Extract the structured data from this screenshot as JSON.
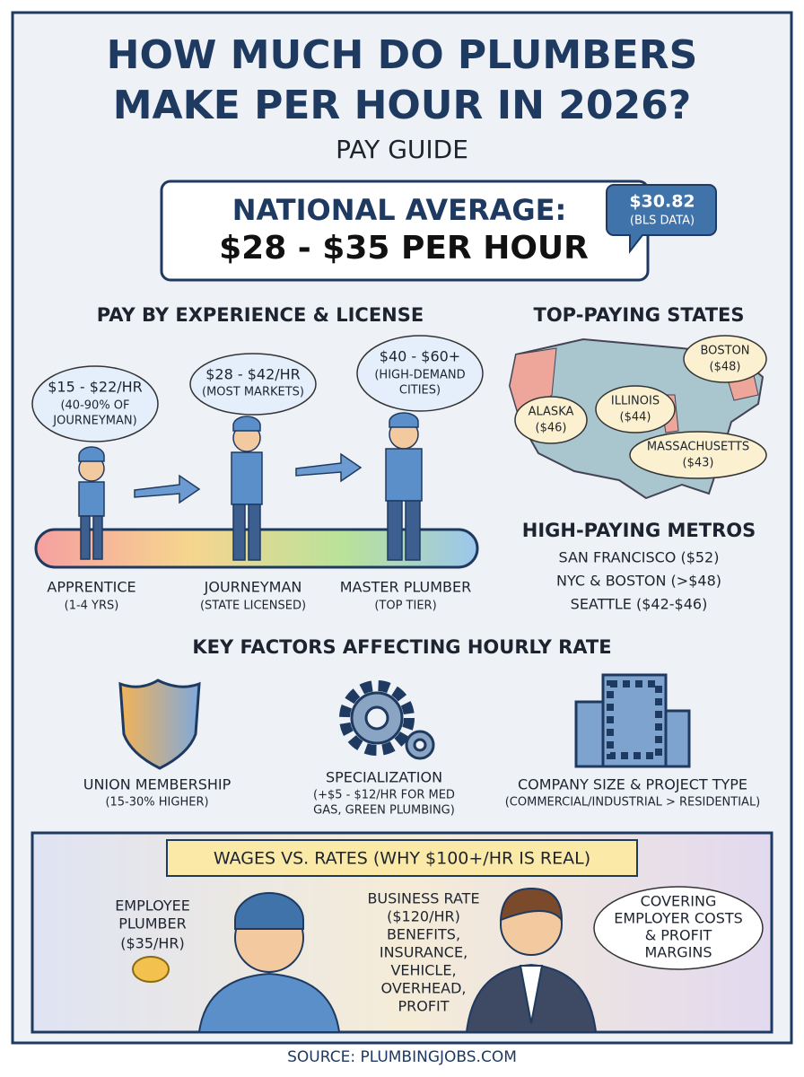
{
  "header": {
    "title_lines": [
      "HOW MUCH DO PLUMBERS",
      "MAKE PER HOUR IN 2026?"
    ],
    "subtitle": "PAY GUIDE"
  },
  "national": {
    "label": "NATIONAL AVERAGE:",
    "range": "$28 - $35 PER HOUR",
    "badge_lines": [
      "$30.82",
      "(BLS DATA)"
    ]
  },
  "experience": {
    "heading": "PAY BY EXPERIENCE & LICENSE",
    "levels": [
      {
        "bubble_lines": [
          "$15 - $22/HR",
          "(40-90% OF",
          "JOURNEYMAN)"
        ],
        "name": "APPRENTICE",
        "note": "(1-4 YRS)"
      },
      {
        "bubble_lines": [
          "$28 - $42/HR",
          "(MOST MARKETS)"
        ],
        "name": "JOURNEYMAN",
        "note": "(STATE LICENSED)"
      },
      {
        "bubble_lines": [
          "$40 - $60+",
          "(HIGH-DEMAND",
          "CITIES)"
        ],
        "name": "MASTER PLUMBER",
        "note": "(TOP TIER)"
      }
    ]
  },
  "states": {
    "heading": "TOP-PAYING STATES",
    "callouts": [
      {
        "lines": [
          "BOSTON",
          "($48)"
        ]
      },
      {
        "lines": [
          "ILLINOIS",
          "($44)"
        ]
      },
      {
        "lines": [
          "ALASKA",
          "($46)"
        ]
      },
      {
        "lines": [
          "MASSACHUSETTS",
          "($43)"
        ]
      }
    ],
    "metros_heading": "HIGH-PAYING METROS",
    "metros": [
      "SAN FRANCISCO ($52)",
      "NYC & BOSTON (>$48)",
      "SEATTLE ($42-$46)"
    ]
  },
  "factors": {
    "heading": "KEY FACTORS AFFECTING HOURLY RATE",
    "items": [
      {
        "name": "UNION MEMBERSHIP",
        "note_lines": [
          "(15-30% HIGHER)"
        ]
      },
      {
        "name": "SPECIALIZATION",
        "note_lines": [
          "(+$5 - $12/HR FOR MED",
          "GAS, GREEN PLUMBING)"
        ]
      },
      {
        "name": "COMPANY SIZE & PROJECT TYPE",
        "note_lines": [
          "(COMMERCIAL/INDUSTRIAL > RESIDENTIAL)"
        ]
      }
    ]
  },
  "wages": {
    "heading": "WAGES VS. RATES (WHY $100+/HR IS REAL)",
    "employee_lines": [
      "EMPLOYEE",
      "PLUMBER",
      "($35/HR)"
    ],
    "business_lines": [
      "BUSINESS RATE",
      "($120/HR)",
      "BENEFITS,",
      "INSURANCE,",
      "VEHICLE,",
      "OVERHEAD,",
      "PROFIT"
    ],
    "bubble_lines": [
      "COVERING",
      "EMPLOYER COSTS",
      "& PROFIT",
      "MARGINS"
    ]
  },
  "source": "SOURCE: PLUMBINGJOBS.COM"
}
